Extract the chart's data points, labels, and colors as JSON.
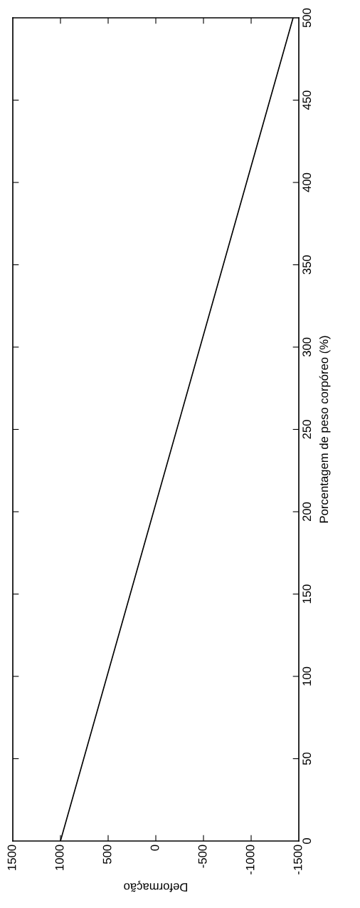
{
  "chart_data": {
    "type": "line",
    "xlabel": "Deformação",
    "ylabel": "Porcentagem de peso corpóreo (%)",
    "x": [
      1000,
      -1440
    ],
    "series": [
      {
        "color": "#000000",
        "values": [
          0,
          500
        ]
      }
    ],
    "xlim": [
      1500,
      -1500
    ],
    "xticks": [
      1500,
      1000,
      500,
      0,
      -500,
      -1000,
      -1500
    ],
    "ylim": [
      0,
      500
    ],
    "yticks": [
      0,
      50,
      100,
      150,
      200,
      250,
      300,
      350,
      400,
      450,
      500
    ],
    "grid": false,
    "legend": false
  }
}
